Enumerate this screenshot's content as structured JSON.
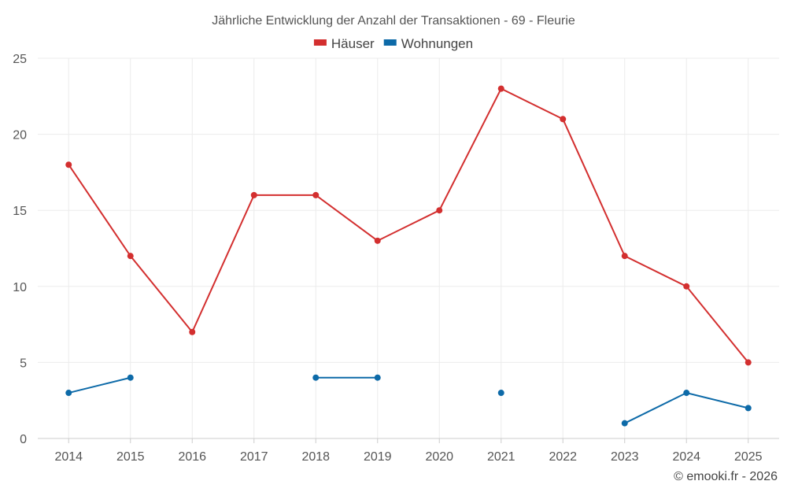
{
  "chart_data": {
    "type": "line",
    "title": "Jährliche Entwicklung der Anzahl der Transaktionen - 69 - Fleurie",
    "credit": "© emooki.fr - 2026",
    "categories": [
      "2014",
      "2015",
      "2016",
      "2017",
      "2018",
      "2019",
      "2020",
      "2021",
      "2022",
      "2023",
      "2024",
      "2025"
    ],
    "ylim": [
      0,
      25
    ],
    "yticks": [
      0,
      5,
      10,
      15,
      20,
      25
    ],
    "grid": true,
    "legend_position": "top-center",
    "series": [
      {
        "name": "Häuser",
        "color": "#d32f2f",
        "values": [
          18,
          12,
          7,
          16,
          16,
          13,
          15,
          23,
          21,
          12,
          10,
          5
        ]
      },
      {
        "name": "Wohnungen",
        "color": "#0d6aa8",
        "values": [
          3,
          4,
          null,
          null,
          4,
          4,
          null,
          3,
          null,
          1,
          3,
          2
        ]
      }
    ]
  }
}
